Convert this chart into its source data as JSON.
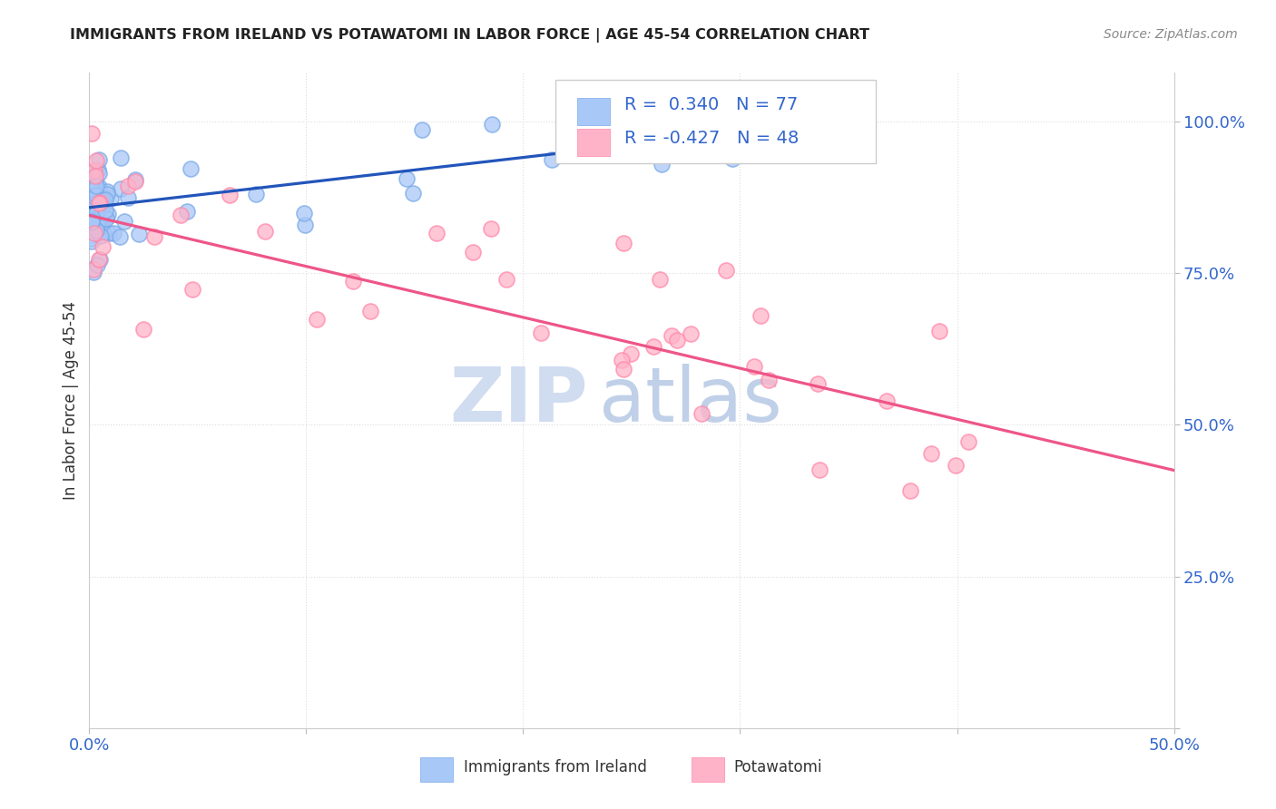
{
  "title": "IMMIGRANTS FROM IRELAND VS POTAWATOMI IN LABOR FORCE | AGE 45-54 CORRELATION CHART",
  "source": "Source: ZipAtlas.com",
  "ylabel": "In Labor Force | Age 45-54",
  "xlim": [
    0.0,
    0.5
  ],
  "ylim": [
    0.0,
    1.08
  ],
  "ireland_R": 0.34,
  "ireland_N": 77,
  "potawatomi_R": -0.427,
  "potawatomi_N": 48,
  "ireland_color": "#A8C8F8",
  "ireland_edge_color": "#7AAAE8",
  "ireland_line_color": "#2255BB",
  "potawatomi_color": "#FFB3C8",
  "potawatomi_edge_color": "#FF88AA",
  "potawatomi_line_color": "#EE5588",
  "background_color": "#FFFFFF",
  "watermark_zip_color": "#D0DCF0",
  "watermark_atlas_color": "#C0D0E8",
  "grid_color": "#DDDDDD",
  "axis_label_color": "#3366CC",
  "title_color": "#222222",
  "source_color": "#888888",
  "text_color": "#333333",
  "legend_text_color": "#3366CC",
  "ireland_line_x": [
    0.0,
    0.315
  ],
  "ireland_line_y": [
    0.858,
    0.988
  ],
  "potawatomi_line_x": [
    0.0,
    0.5
  ],
  "potawatomi_line_y": [
    0.845,
    0.425
  ]
}
